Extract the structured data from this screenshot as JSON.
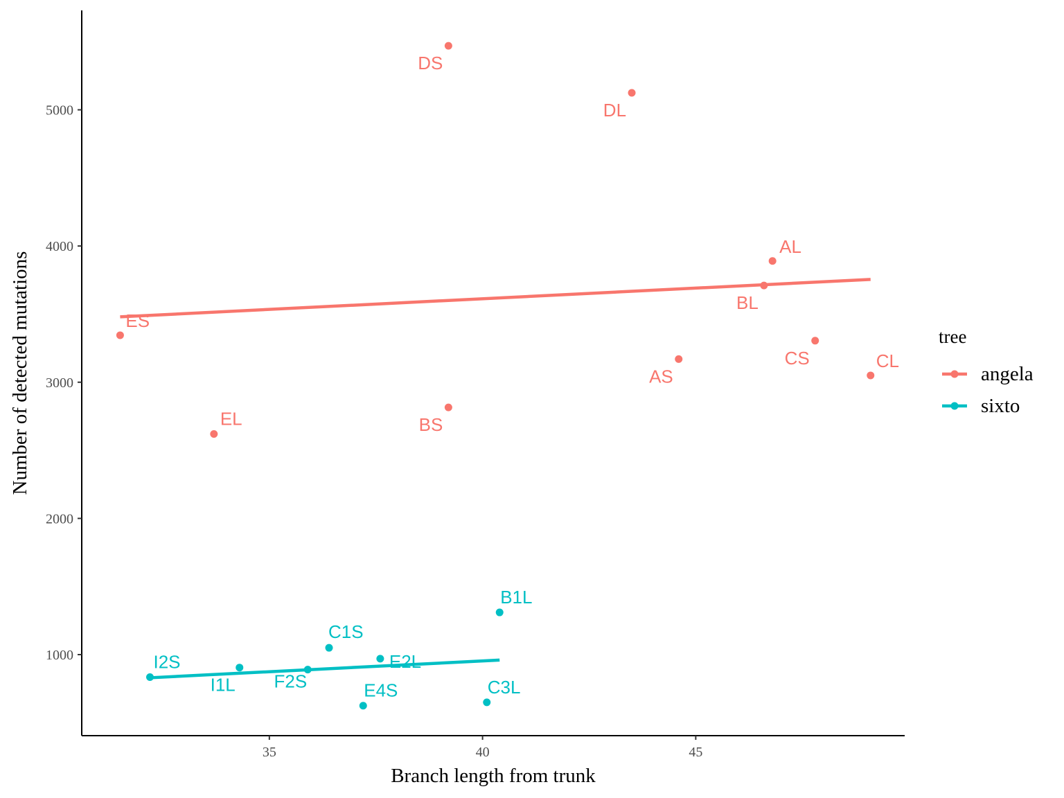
{
  "chart_data": {
    "type": "scatter",
    "title": "",
    "xlabel": "Branch length from trunk",
    "ylabel": "Number of detected mutations",
    "xlim": [
      30.6,
      49.9
    ],
    "ylim": [
      405,
      5730
    ],
    "x_ticks": [
      35,
      40,
      45
    ],
    "y_ticks": [
      1000,
      2000,
      3000,
      4000,
      5000
    ],
    "grid": false,
    "legend": {
      "title": "tree",
      "position": "right"
    },
    "series": [
      {
        "name": "angela",
        "color": "#F8766D",
        "points": [
          {
            "label": "DS",
            "x": 39.2,
            "y": 5470
          },
          {
            "label": "DL",
            "x": 43.5,
            "y": 5125
          },
          {
            "label": "AL",
            "x": 46.8,
            "y": 3890
          },
          {
            "label": "BL",
            "x": 46.6,
            "y": 3710
          },
          {
            "label": "ES",
            "x": 31.5,
            "y": 3345
          },
          {
            "label": "CS",
            "x": 47.8,
            "y": 3305
          },
          {
            "label": "AS",
            "x": 44.6,
            "y": 3170
          },
          {
            "label": "CL",
            "x": 49.1,
            "y": 3050
          },
          {
            "label": "BS",
            "x": 39.2,
            "y": 2815
          },
          {
            "label": "EL",
            "x": 33.7,
            "y": 2620
          }
        ],
        "fit": {
          "x": [
            31.5,
            49.1
          ],
          "y": [
            3480,
            3755
          ]
        }
      },
      {
        "name": "sixto",
        "color": "#00BFC4",
        "points": [
          {
            "label": "B1L",
            "x": 40.4,
            "y": 1310
          },
          {
            "label": "C1S",
            "x": 36.4,
            "y": 1050
          },
          {
            "label": "E2L",
            "x": 37.6,
            "y": 970
          },
          {
            "label": "I2S",
            "x": 32.2,
            "y": 835
          },
          {
            "label": "I1L",
            "x": 34.3,
            "y": 905
          },
          {
            "label": "F2S",
            "x": 35.9,
            "y": 890
          },
          {
            "label": "C3L",
            "x": 40.1,
            "y": 650
          },
          {
            "label": "E4S",
            "x": 37.2,
            "y": 625
          }
        ],
        "fit": {
          "x": [
            32.2,
            40.4
          ],
          "y": [
            830,
            960
          ]
        }
      }
    ]
  }
}
